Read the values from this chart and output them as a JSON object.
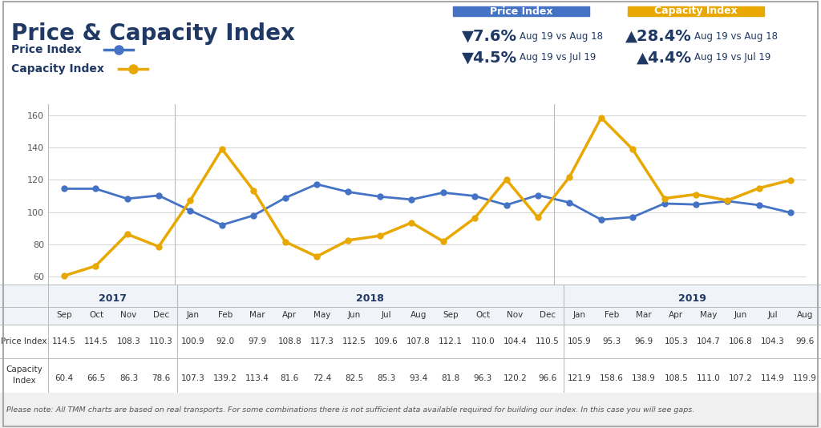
{
  "title": "Price & Capacity Index",
  "blue_color": "#4472C4",
  "gold_color": "#E8A800",
  "dark_blue": "#1F3864",
  "months": [
    "Sep",
    "Oct",
    "Nov",
    "Dec",
    "Jan",
    "Feb",
    "Mar",
    "Apr",
    "May",
    "Jun",
    "Jul",
    "Aug",
    "Sep",
    "Oct",
    "Nov",
    "Dec",
    "Jan",
    "Feb",
    "Mar",
    "Apr",
    "May",
    "Jun",
    "Jul",
    "Aug"
  ],
  "years": [
    {
      "label": "2017",
      "start": 0,
      "end": 3
    },
    {
      "label": "2018",
      "start": 4,
      "end": 15
    },
    {
      "label": "2019",
      "start": 16,
      "end": 23
    }
  ],
  "price_index": [
    114.5,
    114.5,
    108.3,
    110.3,
    100.9,
    92.0,
    97.9,
    108.8,
    117.3,
    112.5,
    109.6,
    107.8,
    112.1,
    110.0,
    104.4,
    110.5,
    105.9,
    95.3,
    96.9,
    105.3,
    104.7,
    106.8,
    104.3,
    99.6
  ],
  "capacity_index": [
    60.4,
    66.5,
    86.3,
    78.6,
    107.3,
    139.2,
    113.4,
    81.6,
    72.4,
    82.5,
    85.3,
    93.4,
    81.8,
    96.3,
    120.2,
    96.6,
    121.9,
    158.6,
    138.9,
    108.5,
    111.0,
    107.2,
    114.9,
    119.9
  ],
  "ylim": [
    55,
    167
  ],
  "yticks": [
    60,
    80,
    100,
    120,
    140,
    160
  ],
  "footnote": "Please note: All TMM charts are based on real transports. For some combinations there is not sufficient data available required for building our index. In this case you will see gaps."
}
